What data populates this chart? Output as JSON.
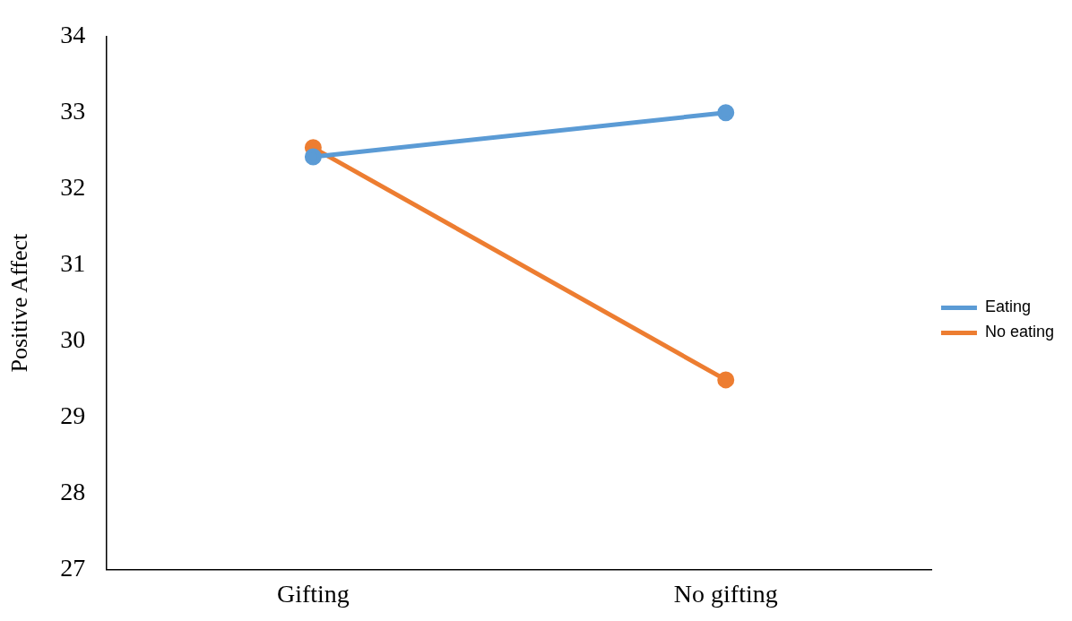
{
  "chart_data": {
    "type": "line",
    "ylabel": "Positive Affect",
    "categories": [
      "Gifting",
      "No gifting"
    ],
    "series": [
      {
        "name": "Eating",
        "color": "#5b9bd5",
        "values": [
          32.42,
          33.0
        ]
      },
      {
        "name": "No eating",
        "color": "#ed7d31",
        "values": [
          32.54,
          29.49
        ]
      }
    ],
    "ylim": [
      27,
      34
    ],
    "yticks": [
      27,
      28,
      29,
      30,
      31,
      32,
      33,
      34
    ],
    "grid": false,
    "legend": "right",
    "marker": "circle",
    "line_style": "solid"
  }
}
